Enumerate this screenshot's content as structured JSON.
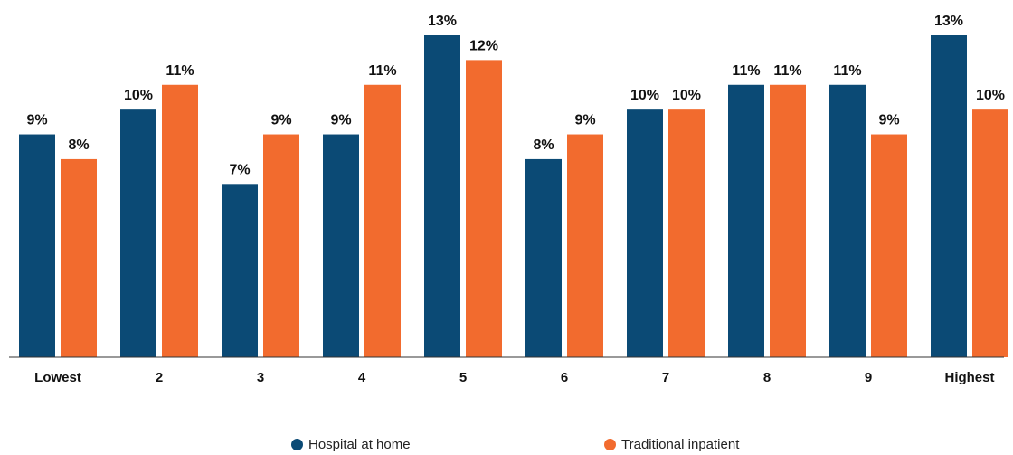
{
  "chart_data": {
    "type": "bar",
    "categories": [
      "Lowest",
      "2",
      "3",
      "4",
      "5",
      "6",
      "7",
      "8",
      "9",
      "Highest"
    ],
    "series": [
      {
        "name": "Hospital at home",
        "color": "#0b4a75",
        "values": [
          9,
          10,
          7,
          9,
          13,
          8,
          10,
          11,
          11,
          13
        ]
      },
      {
        "name": "Traditional inpatient",
        "color": "#f26b2e",
        "values": [
          8,
          11,
          9,
          11,
          12,
          9,
          10,
          11,
          9,
          10
        ]
      }
    ],
    "value_suffix": "%",
    "ylim": [
      0,
      13
    ],
    "grid": false,
    "legend_position": "bottom"
  }
}
